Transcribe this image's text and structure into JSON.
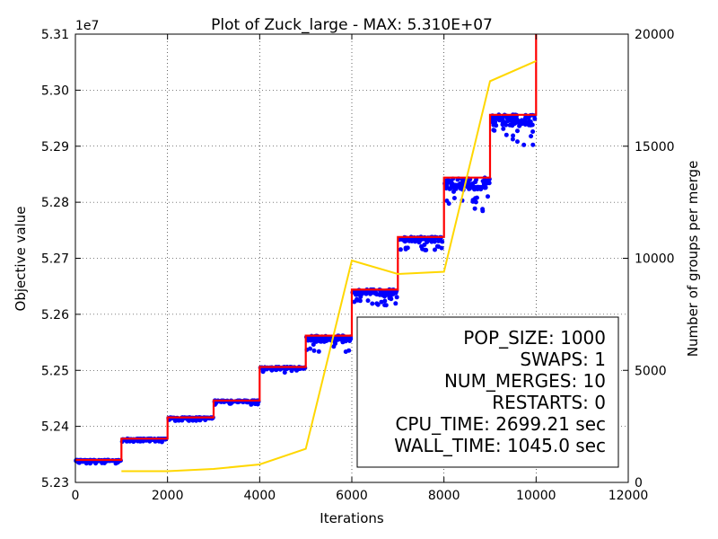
{
  "chart_data": {
    "type": "scatter",
    "title": "Plot of Zuck_large - MAX: 5.310E+07",
    "xlabel": "Iterations",
    "ylabel": "Objective value",
    "y2label": "Number of groups per merge",
    "y_offset_label": "1e7",
    "xlim": [
      0,
      12000
    ],
    "ylim": [
      52300000,
      53100000
    ],
    "y2lim": [
      0,
      20000
    ],
    "x_ticks": [
      0,
      2000,
      4000,
      6000,
      8000,
      10000,
      12000
    ],
    "x_tick_labels": [
      "0",
      "2000",
      "4000",
      "6000",
      "8000",
      "10000",
      "12000"
    ],
    "y_ticks": [
      52300000,
      52400000,
      52500000,
      52600000,
      52700000,
      52800000,
      52900000,
      53000000,
      53100000
    ],
    "y_tick_labels": [
      "5.23",
      "5.24",
      "5.25",
      "5.26",
      "5.27",
      "5.28",
      "5.29",
      "5.30",
      "5.31"
    ],
    "y2_ticks": [
      0,
      5000,
      10000,
      15000,
      20000
    ],
    "y2_tick_labels": [
      "0",
      "5000",
      "10000",
      "15000",
      "20000"
    ],
    "grid": true,
    "series": [
      {
        "style": "step-line",
        "color": "#ff0000",
        "x": [
          0,
          1000,
          1000,
          2000,
          2000,
          3000,
          3000,
          4000,
          4000,
          5000,
          5000,
          6000,
          6000,
          7000,
          7000,
          8000,
          8000,
          9000,
          9000,
          10000,
          10000
        ],
        "y": [
          52340000,
          52340000,
          52378000,
          52378000,
          52416000,
          52416000,
          52446000,
          52446000,
          52506000,
          52506000,
          52562000,
          52562000,
          52644000,
          52644000,
          52738000,
          52738000,
          52844000,
          52844000,
          52956000,
          52956000,
          53100000
        ]
      },
      {
        "style": "scatter",
        "color": "#0000ff",
        "segments": [
          {
            "x0": 0,
            "x1": 1000,
            "top": 52340000,
            "spread": 6000
          },
          {
            "x0": 1000,
            "x1": 2000,
            "top": 52378000,
            "spread": 6000
          },
          {
            "x0": 2000,
            "x1": 3000,
            "top": 52416000,
            "spread": 6000
          },
          {
            "x0": 3000,
            "x1": 4000,
            "top": 52446000,
            "spread": 8000
          },
          {
            "x0": 4000,
            "x1": 5000,
            "top": 52506000,
            "spread": 10000
          },
          {
            "x0": 5000,
            "x1": 6000,
            "top": 52562000,
            "spread": 30000
          },
          {
            "x0": 6000,
            "x1": 7000,
            "top": 52644000,
            "spread": 28000
          },
          {
            "x0": 7000,
            "x1": 8000,
            "top": 52738000,
            "spread": 24000
          },
          {
            "x0": 8000,
            "x1": 9000,
            "top": 52844000,
            "spread": 60000
          },
          {
            "x0": 9000,
            "x1": 10000,
            "top": 52956000,
            "spread": 55000
          }
        ]
      },
      {
        "style": "line",
        "axis": "right",
        "color": "#ffd700",
        "x": [
          1000,
          2000,
          3000,
          4000,
          5000,
          6000,
          7000,
          8000,
          9000,
          10000
        ],
        "y": [
          500,
          500,
          600,
          800,
          1500,
          9900,
          9300,
          9400,
          17900,
          18800
        ]
      }
    ],
    "annotation_box": {
      "position": "lower-right",
      "lines": [
        "POP_SIZE: 1000",
        "SWAPS: 1",
        "NUM_MERGES: 10",
        "RESTARTS: 0",
        "CPU_TIME: 2699.21 sec",
        "WALL_TIME: 1045.0 sec"
      ]
    }
  }
}
